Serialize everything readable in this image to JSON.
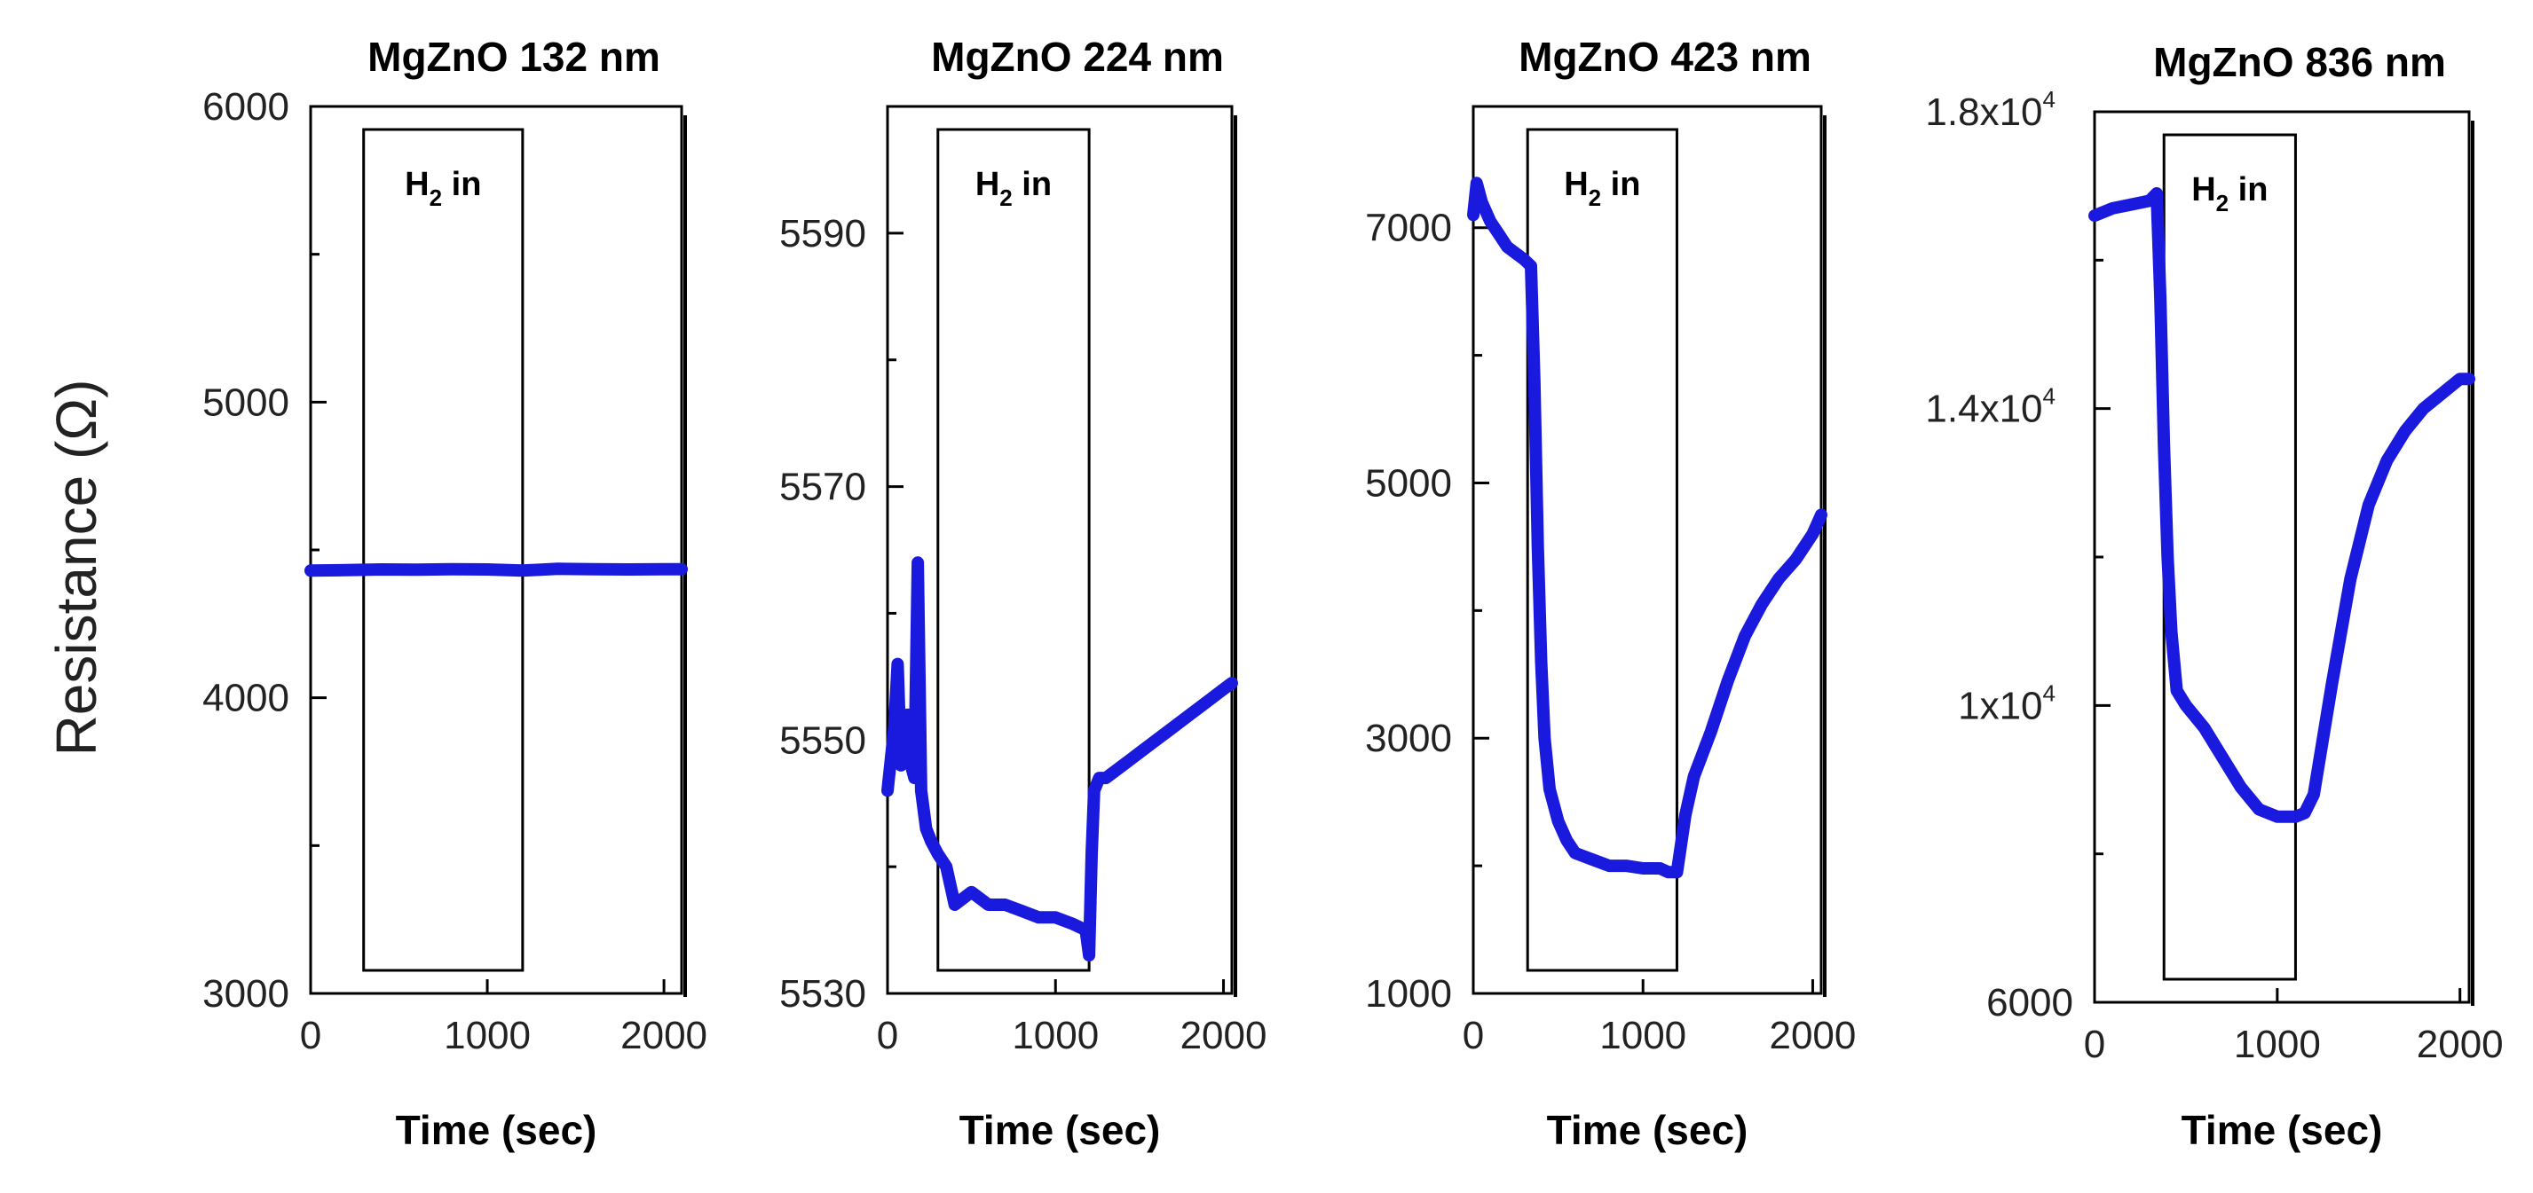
{
  "figure": {
    "ylabel": "Resistance (Ω)",
    "colors": {
      "series": "#1a1adf",
      "axis": "#000000",
      "box": "#000000"
    }
  },
  "chart_data": [
    {
      "type": "line",
      "title": "MgZnO 132 nm",
      "xlabel": "Time (sec)",
      "xlim": [
        0,
        2100
      ],
      "ylim": [
        3000,
        6000
      ],
      "xticks": [
        0,
        1000,
        2000
      ],
      "xtick_labels": [
        "0",
        "1000",
        "2000"
      ],
      "yticks": [
        3000,
        4000,
        5000,
        6000
      ],
      "ytick_labels": [
        "3000",
        "4000",
        "5000",
        "6000"
      ],
      "yticks_minor": [
        3500,
        4500,
        5500
      ],
      "annotation": {
        "text": "H",
        "sub": "2",
        "suffix": " in",
        "x_start": 300,
        "x_end": 1200
      },
      "series": [
        {
          "x": [
            0,
            200,
            400,
            600,
            800,
            1000,
            1200,
            1400,
            1600,
            1800,
            2000,
            2100
          ],
          "y": [
            4430,
            4432,
            4434,
            4433,
            4435,
            4434,
            4430,
            4436,
            4435,
            4434,
            4435,
            4435
          ]
        }
      ]
    },
    {
      "type": "line",
      "title": "MgZnO 224 nm",
      "xlabel": "Time (sec)",
      "xlim": [
        0,
        2050
      ],
      "ylim": [
        5530,
        5600
      ],
      "xticks": [
        0,
        1000,
        2000
      ],
      "xtick_labels": [
        "0",
        "1000",
        "2000"
      ],
      "yticks": [
        5530,
        5550,
        5570,
        5590
      ],
      "ytick_labels": [
        "5530",
        "5550",
        "5570",
        "5590"
      ],
      "yticks_minor": [
        5540,
        5560,
        5580
      ],
      "annotation": {
        "text": "H",
        "sub": "2",
        "suffix": " in",
        "x_start": 300,
        "x_end": 1200
      },
      "series": [
        {
          "x": [
            0,
            40,
            60,
            80,
            100,
            120,
            140,
            160,
            180,
            200,
            230,
            260,
            300,
            350,
            400,
            500,
            600,
            700,
            800,
            900,
            1000,
            1100,
            1180,
            1200,
            1215,
            1230,
            1260,
            1300,
            1400,
            1500,
            1600,
            1700,
            1800,
            1900,
            2000,
            2050
          ],
          "y": [
            5546,
            5551,
            5556,
            5548,
            5549,
            5552,
            5548,
            5547,
            5564,
            5546,
            5543,
            5542,
            5541,
            5540,
            5537,
            5538,
            5537,
            5537,
            5536.5,
            5536,
            5536,
            5535.5,
            5535,
            5533,
            5541,
            5546,
            5547,
            5547,
            5548,
            5549,
            5550,
            5551,
            5552,
            5553,
            5554,
            5554.5
          ]
        }
      ]
    },
    {
      "type": "line",
      "title": "MgZnO 423 nm",
      "xlabel": "Time (sec)",
      "xlim": [
        0,
        2050
      ],
      "ylim": [
        1000,
        7950
      ],
      "xticks": [
        0,
        1000,
        2000
      ],
      "xtick_labels": [
        "0",
        "1000",
        "2000"
      ],
      "yticks": [
        1000,
        3000,
        5000,
        7000
      ],
      "ytick_labels": [
        "1000",
        "3000",
        "5000",
        "7000"
      ],
      "yticks_minor": [
        2000,
        4000,
        6000
      ],
      "annotation": {
        "text": "H",
        "sub": "2",
        "suffix": " in",
        "x_start": 320,
        "x_end": 1200
      },
      "series": [
        {
          "x": [
            0,
            20,
            50,
            100,
            150,
            200,
            250,
            300,
            340,
            360,
            380,
            400,
            420,
            450,
            500,
            550,
            600,
            700,
            800,
            900,
            1000,
            1100,
            1150,
            1200,
            1250,
            1300,
            1400,
            1500,
            1600,
            1700,
            1800,
            1900,
            2000,
            2050
          ],
          "y": [
            7100,
            7350,
            7200,
            7050,
            6950,
            6850,
            6800,
            6750,
            6700,
            5800,
            4500,
            3600,
            3000,
            2600,
            2350,
            2200,
            2100,
            2050,
            2000,
            2000,
            1980,
            1980,
            1950,
            1950,
            2400,
            2700,
            3050,
            3450,
            3800,
            4050,
            4250,
            4400,
            4600,
            4750
          ]
        }
      ]
    },
    {
      "type": "line",
      "title": "MgZnO 836 nm",
      "xlabel": "Time (sec)",
      "xlim": [
        0,
        2050
      ],
      "ylim": [
        6000,
        18000
      ],
      "xticks": [
        0,
        1000,
        2000
      ],
      "xtick_labels": [
        "0",
        "1000",
        "2000"
      ],
      "yticks": [
        6000,
        10000,
        14000,
        18000
      ],
      "ytick_labels": [
        "6000",
        "1x10",
        "1.4x10",
        "1.8x10"
      ],
      "ytick_sups": [
        "",
        "4",
        "4",
        "4"
      ],
      "yticks_minor": [
        8000,
        12000,
        16000
      ],
      "annotation": {
        "text": "H",
        "sub": "2",
        "suffix": " in",
        "x_start": 380,
        "x_end": 1100
      },
      "series": [
        {
          "x": [
            0,
            100,
            200,
            300,
            340,
            360,
            380,
            400,
            420,
            450,
            500,
            600,
            700,
            800,
            900,
            1000,
            1100,
            1150,
            1200,
            1300,
            1400,
            1500,
            1600,
            1700,
            1800,
            1900,
            2000,
            2050
          ],
          "y": [
            16600,
            16700,
            16750,
            16800,
            16900,
            15500,
            13500,
            12000,
            11000,
            10200,
            10000,
            9700,
            9300,
            8900,
            8600,
            8500,
            8500,
            8550,
            8800,
            10300,
            11700,
            12700,
            13300,
            13700,
            14000,
            14200,
            14400,
            14400
          ]
        }
      ]
    }
  ]
}
